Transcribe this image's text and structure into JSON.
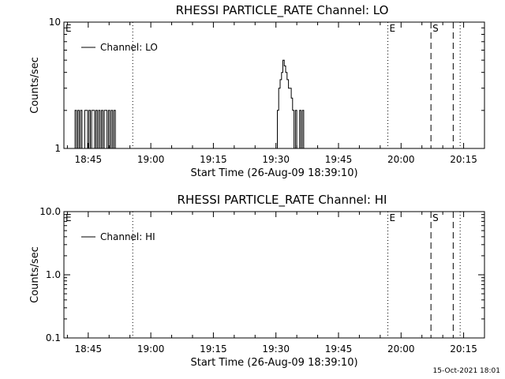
{
  "footer_date": "15-Oct-2021 18:01",
  "chart_data": [
    {
      "type": "line",
      "title": "RHESSI PARTICLE_RATE Channel: LO",
      "xlabel": "Start Time (26-Aug-09 18:39:10)",
      "ylabel": "Counts/sec",
      "xlim": [
        "18:39:10",
        "20:20:00"
      ],
      "xticks": [
        "18:45",
        "19:00",
        "19:15",
        "19:30",
        "19:45",
        "20:00",
        "20:15"
      ],
      "ylim": [
        1,
        10
      ],
      "yscale": "log",
      "yticks": [
        {
          "value": 1,
          "label": "1"
        },
        {
          "value": 10,
          "label": "10"
        }
      ],
      "legend": {
        "label": "Channel: LO",
        "position": "top-left"
      },
      "series": [
        {
          "name": "Channel: LO",
          "color": "#000000",
          "x": [
            "18:41:50",
            "18:42:10",
            "18:42:30",
            "18:42:50",
            "18:43:10",
            "18:43:30",
            "18:43:50",
            "18:44:10",
            "18:44:30",
            "18:44:50",
            "18:45:10",
            "18:45:30",
            "18:45:50",
            "18:46:10",
            "18:46:30",
            "18:46:50",
            "18:47:10",
            "18:47:30",
            "18:47:50",
            "18:48:10",
            "18:48:30",
            "18:48:50",
            "18:49:10",
            "18:49:30",
            "18:49:50",
            "18:50:10",
            "18:50:30",
            "18:50:50",
            "18:51:10",
            "18:51:30",
            "18:51:50",
            "18:52:10",
            "19:30:20",
            "19:30:40",
            "19:31:00",
            "19:31:20",
            "19:31:40",
            "19:32:00",
            "19:32:20",
            "19:32:40",
            "19:33:00",
            "19:33:20",
            "19:33:40",
            "19:34:00",
            "19:34:20",
            "19:34:40",
            "19:35:00",
            "19:35:20",
            "19:35:40",
            "19:36:00",
            "19:36:20",
            "19:36:40",
            "19:37:00",
            "19:37:20",
            "19:37:40",
            "19:38:00"
          ],
          "y": [
            1,
            2,
            1,
            2,
            1,
            2,
            1,
            1,
            2,
            2,
            1,
            2,
            1,
            2,
            2,
            1,
            2,
            1,
            2,
            1,
            2,
            1,
            2,
            2,
            1,
            2,
            1,
            2,
            1,
            2,
            1,
            1,
            1,
            2,
            3,
            3.5,
            4,
            5,
            4.5,
            4,
            3.5,
            3,
            3,
            2.5,
            2,
            1,
            2,
            1,
            1,
            2,
            1,
            2,
            1,
            1,
            1,
            1
          ]
        }
      ],
      "markers": [
        {
          "time": "18:39:10",
          "style": "dotted",
          "label": "E"
        },
        {
          "time": "18:55:40",
          "style": "dotted",
          "label": ""
        },
        {
          "time": "19:56:50",
          "style": "dotted",
          "label": "E"
        },
        {
          "time": "20:07:10",
          "style": "dashed",
          "label": "S"
        },
        {
          "time": "20:12:30",
          "style": "dashed",
          "label": ""
        },
        {
          "time": "20:14:10",
          "style": "dotted",
          "label": ""
        }
      ]
    },
    {
      "type": "line",
      "title": "RHESSI PARTICLE_RATE Channel: HI",
      "xlabel": "Start Time (26-Aug-09 18:39:10)",
      "ylabel": "Counts/sec",
      "xlim": [
        "18:39:10",
        "20:20:00"
      ],
      "xticks": [
        "18:45",
        "19:00",
        "19:15",
        "19:30",
        "19:45",
        "20:00",
        "20:15"
      ],
      "ylim": [
        0.1,
        10
      ],
      "yscale": "log",
      "yticks": [
        {
          "value": 0.1,
          "label": "0.1"
        },
        {
          "value": 1,
          "label": "1.0"
        },
        {
          "value": 10,
          "label": "10.0"
        }
      ],
      "legend": {
        "label": "Channel: HI",
        "position": "top-left"
      },
      "series": [
        {
          "name": "Channel: HI",
          "color": "#000000",
          "x": [],
          "y": []
        }
      ],
      "markers": [
        {
          "time": "18:39:10",
          "style": "dotted",
          "label": "E"
        },
        {
          "time": "18:55:40",
          "style": "dotted",
          "label": ""
        },
        {
          "time": "19:56:50",
          "style": "dotted",
          "label": "E"
        },
        {
          "time": "20:07:10",
          "style": "dashed",
          "label": "S"
        },
        {
          "time": "20:12:30",
          "style": "dashed",
          "label": ""
        },
        {
          "time": "20:14:10",
          "style": "dotted",
          "label": ""
        }
      ]
    }
  ]
}
